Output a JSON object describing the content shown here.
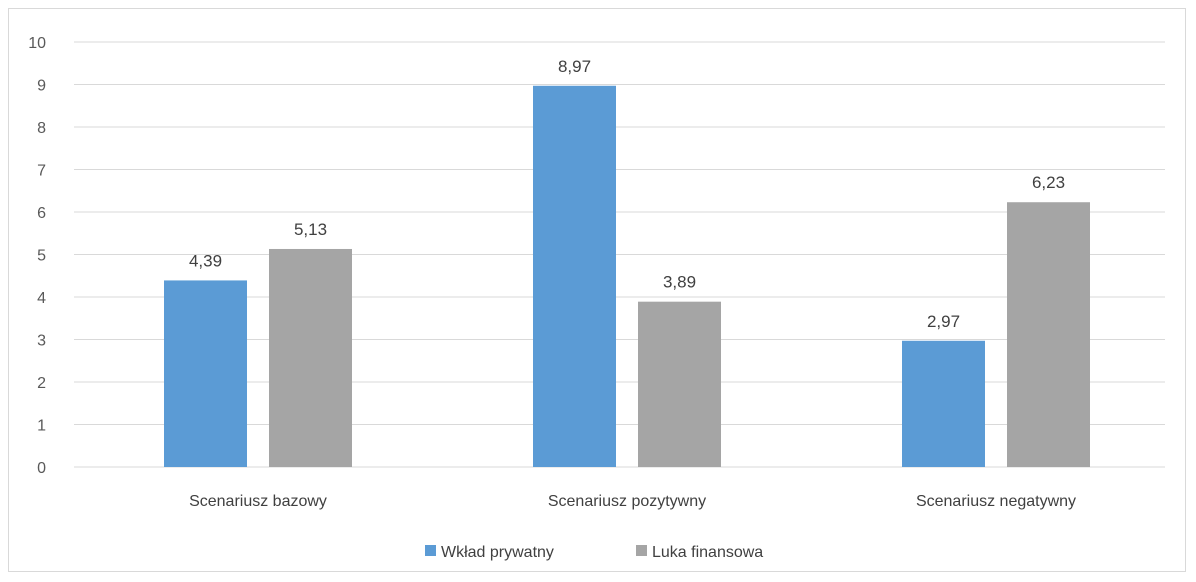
{
  "chart_data": {
    "type": "bar",
    "categories": [
      "Scenariusz bazowy",
      "Scenariusz pozytywny",
      "Scenariusz negatywny"
    ],
    "series": [
      {
        "name": "Wkład prywatny",
        "values": [
          4.39,
          8.97,
          2.97
        ],
        "labels": [
          "4,39",
          "8,97",
          "2,97"
        ],
        "color": "#5B9BD5"
      },
      {
        "name": "Luka finansowa",
        "values": [
          5.13,
          3.89,
          6.23
        ],
        "labels": [
          "5,13",
          "3,89",
          "6,23"
        ],
        "color": "#A5A5A5"
      }
    ],
    "y_ticks": [
      "0",
      "1",
      "2",
      "3",
      "4",
      "5",
      "6",
      "7",
      "8",
      "9",
      "10"
    ],
    "ylim": [
      0,
      10
    ],
    "grid": true,
    "legend": "bottom",
    "gridline_color": "#d9d9d9"
  }
}
